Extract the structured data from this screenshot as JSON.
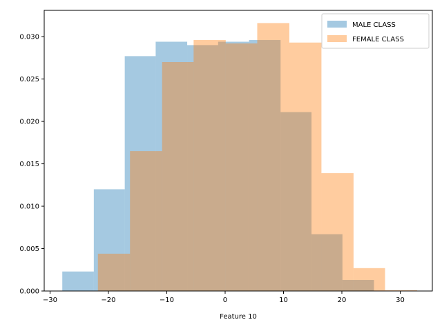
{
  "chart_data": {
    "type": "histogram",
    "title": "",
    "xlabel": "Feature 10",
    "ylabel": "",
    "xlim": [
      -31.0,
      35.5
    ],
    "ylim": [
      0,
      0.0331
    ],
    "xticks": [
      -30,
      -20,
      -10,
      0,
      10,
      20,
      30
    ],
    "yticks": [
      0.0,
      0.005,
      0.01,
      0.015,
      0.02,
      0.025,
      0.03
    ],
    "ytick_labels": [
      "0.000",
      "0.005",
      "0.010",
      "0.015",
      "0.020",
      "0.025",
      "0.030"
    ],
    "grid": false,
    "legend_position": "upper right",
    "series": [
      {
        "name": "MALE CLASS",
        "color": "#1f77b4",
        "alpha": 0.4,
        "bin_edges": [
          -27.9,
          -22.5,
          -17.2,
          -11.9,
          -6.5,
          -1.2,
          4.1,
          9.5,
          14.8,
          20.1,
          25.5
        ],
        "values": [
          0.0023,
          0.012,
          0.0277,
          0.0294,
          0.029,
          0.0294,
          0.0296,
          0.0211,
          0.0067,
          0.0013
        ]
      },
      {
        "name": "FEMALE CLASS",
        "color": "#ff7f0e",
        "alpha": 0.4,
        "bin_edges": [
          -21.8,
          -16.3,
          -10.8,
          -5.4,
          0.1,
          5.5,
          11.0,
          16.5,
          22.0,
          27.4,
          32.9
        ],
        "values": [
          0.0044,
          0.0165,
          0.027,
          0.0296,
          0.0292,
          0.0316,
          0.0293,
          0.0139,
          0.0027,
          0.0001
        ]
      }
    ]
  }
}
